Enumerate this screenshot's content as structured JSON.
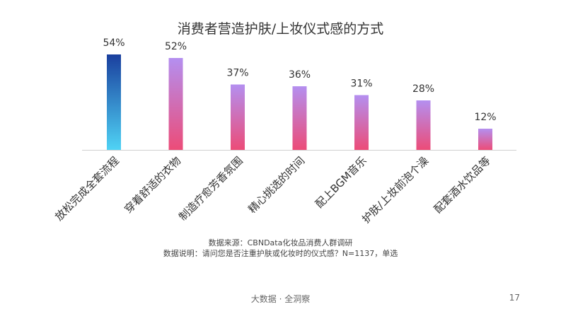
{
  "chart_data": {
    "type": "bar",
    "title": "消费者营造护肤/上妆仪式感的方式",
    "categories": [
      "放松完成全套流程",
      "穿着舒适的衣物",
      "制造疗愈芳香氛围",
      "精心挑选的时间",
      "配上BGM音乐",
      "护肤/上妆前泡个澡",
      "配套酒水饮品等"
    ],
    "values": [
      54,
      52,
      37,
      36,
      31,
      28,
      12
    ],
    "value_labels": [
      "54%",
      "52%",
      "37%",
      "36%",
      "31%",
      "28%",
      "12%"
    ],
    "xlabel": "",
    "ylabel": "",
    "ylim": [
      0,
      60
    ],
    "grid": false,
    "colors": {
      "highlight_top": "#1a3f9e",
      "highlight_bottom": "#4fd3f5",
      "bar_top": "#b48ff0",
      "bar_bottom": "#ec4c78",
      "axis": "#d0d0d0"
    }
  },
  "notes": {
    "source": "数据来源：CBNData化妆品消费人群调研",
    "description": "数据说明：请问您是否注重护肤或化妆时的仪式感？N=1137，单选"
  },
  "footer": {
    "brand": "大数据 · 全洞察",
    "page_number": "17"
  }
}
